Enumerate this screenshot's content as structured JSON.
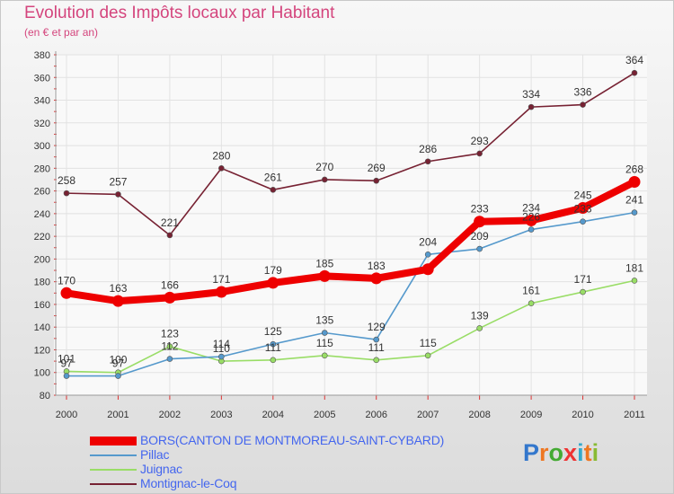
{
  "header": {
    "title": "Evolution des Impôts locaux par Habitant",
    "subtitle": "(en € et par an)"
  },
  "logo": {
    "text": "Proxiti",
    "letters": [
      "P",
      "r",
      "o",
      "x",
      "i",
      "t",
      "i"
    ],
    "colors": [
      "#3377cc",
      "#ee7722",
      "#44aa33",
      "#ee3333",
      "#33aacc",
      "#ee7722",
      "#88bb33"
    ]
  },
  "chart_data": {
    "type": "line",
    "categories": [
      "2000",
      "2001",
      "2002",
      "2003",
      "2004",
      "2005",
      "2006",
      "2007",
      "2008",
      "2009",
      "2010",
      "2011"
    ],
    "ylim": [
      80,
      380
    ],
    "yticks": [
      80,
      100,
      120,
      140,
      160,
      180,
      200,
      220,
      240,
      260,
      280,
      300,
      320,
      340,
      360,
      380
    ],
    "grid": true,
    "legend_position": "bottom-left",
    "series": [
      {
        "name": "BORS(CANTON DE MONTMOREAU-SAINT-CYBARD)",
        "color": "#ee0000",
        "values": [
          170,
          163,
          166,
          171,
          179,
          185,
          183,
          191,
          233,
          234,
          245,
          268
        ],
        "labels": [
          "170",
          "163",
          "166",
          "171",
          "179",
          "185",
          "183",
          "",
          "233",
          "234",
          "245",
          "268"
        ]
      },
      {
        "name": "Pillac",
        "color": "#5599cc",
        "values": [
          97,
          97,
          112,
          114,
          125,
          135,
          129,
          204,
          209,
          226,
          233,
          241
        ],
        "labels": [
          "97",
          "97",
          "112",
          "114",
          "125",
          "135",
          "129",
          "204",
          "209",
          "226",
          "233",
          "241"
        ]
      },
      {
        "name": "Juignac",
        "color": "#99dd66",
        "values": [
          101,
          100,
          123,
          110,
          111,
          115,
          111,
          115,
          139,
          161,
          171,
          181
        ],
        "labels": [
          "101",
          "100",
          "123",
          "110",
          "111",
          "115",
          "111",
          "115",
          "139",
          "161",
          "171",
          "181"
        ]
      },
      {
        "name": "Montignac-le-Coq",
        "color": "#772233",
        "values": [
          258,
          257,
          221,
          280,
          261,
          270,
          269,
          286,
          293,
          334,
          336,
          364
        ],
        "labels": [
          "258",
          "257",
          "221",
          "280",
          "261",
          "270",
          "269",
          "286",
          "293",
          "334",
          "336",
          "364"
        ]
      }
    ]
  }
}
